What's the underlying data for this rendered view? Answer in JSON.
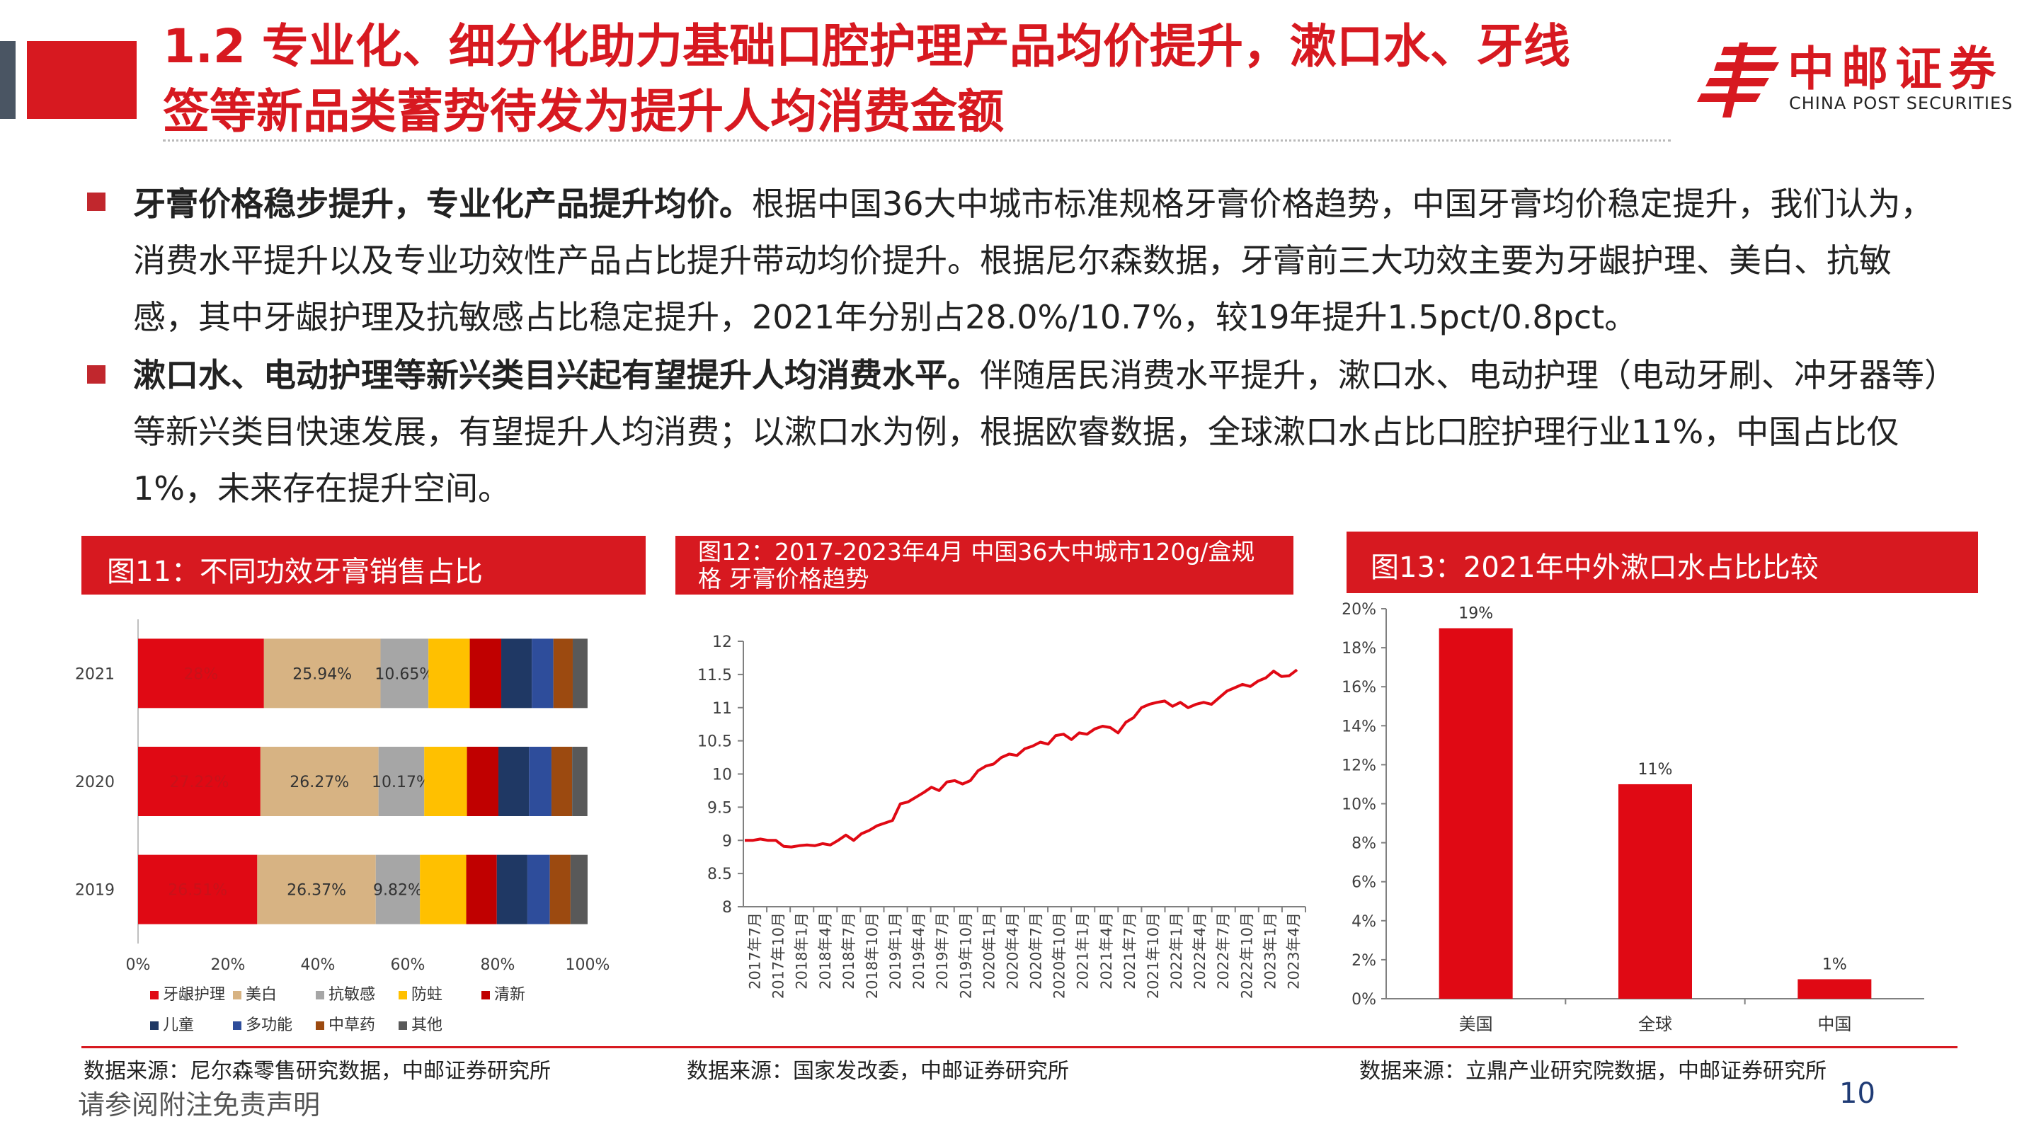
{
  "header": {
    "title_line1": "1.2 专业化、细分化助力基础口腔护理产品均价提升，漱口水、牙线",
    "title_line2": "签等新品类蓄势待发为提升人均消费金额",
    "logo_cn": "中邮证券",
    "logo_en": "CHINA POST SECURITIES",
    "brand_color": "#d71920"
  },
  "bullets": [
    {
      "bold": "牙膏价格稳步提升，专业化产品提升均价。",
      "text": "根据中国36大中城市标准规格牙膏价格趋势，中国牙膏均价稳定提升，我们认为，消费水平提升以及专业功效性产品占比提升带动均价提升。根据尼尔森数据，牙膏前三大功效主要为牙龈护理、美白、抗敏感，其中牙龈护理及抗敏感占比稳定提升，2021年分别占28.0%/10.7%，较19年提升1.5pct/0.8pct。"
    },
    {
      "bold": "漱口水、电动护理等新兴类目兴起有望提升人均消费水平。",
      "text": "伴随居民消费水平提升，漱口水、电动护理（电动牙刷、冲牙器等）等新兴类目快速发展，有望提升人均消费；以漱口水为例，根据欧睿数据，全球漱口水占比口腔护理行业11%，中国占比仅1%，未来存在提升空间。"
    }
  ],
  "figures": {
    "fig11": {
      "title": "图11：不同功效牙膏销售占比",
      "source": "数据来源：尼尔森零售研究数据，中邮证券研究所"
    },
    "fig12": {
      "title_line1": "图12：2017-2023年4月 中国36大中城市120g/盒规",
      "title_line2": "格   牙膏价格趋势",
      "source": "数据来源：国家发改委，中邮证券研究所"
    },
    "fig13": {
      "title": "图13：2021年中外漱口水占比比较",
      "source": "数据来源：立鼎产业研究院数据，中邮证券研究所"
    }
  },
  "footer": {
    "disclaimer": "请参阅附注免责声明",
    "page_number": "10"
  },
  "chart_data": [
    {
      "type": "bar",
      "orientation": "horizontal",
      "stacked": true,
      "categories": [
        "2021",
        "2020",
        "2019"
      ],
      "series": [
        {
          "name": "牙龈护理",
          "color": "#e00914",
          "values": [
            28.0,
            27.22,
            26.51
          ],
          "labels": [
            "28%",
            "27.22%",
            "26.51%"
          ]
        },
        {
          "name": "美白",
          "color": "#d7b383",
          "values": [
            25.94,
            26.27,
            26.37
          ],
          "labels": [
            "25.94%",
            "26.27%",
            "26.37%"
          ]
        },
        {
          "name": "抗敏感",
          "color": "#a6a6a6",
          "values": [
            10.65,
            10.17,
            9.82
          ],
          "labels": [
            "10.65%",
            "10.17%",
            "9.82%"
          ]
        },
        {
          "name": "防蛀",
          "color": "#ffc000",
          "values": [
            9.2,
            9.5,
            10.3
          ]
        },
        {
          "name": "清新",
          "color": "#c00000",
          "values": [
            7.0,
            7.0,
            6.8
          ]
        },
        {
          "name": "儿童",
          "color": "#1f3864",
          "values": [
            6.8,
            6.8,
            6.8
          ]
        },
        {
          "name": "多功能",
          "color": "#2e4d9b",
          "values": [
            4.8,
            5.0,
            5.0
          ]
        },
        {
          "name": "中草药",
          "color": "#9c4a10",
          "values": [
            4.3,
            4.6,
            4.6
          ]
        },
        {
          "name": "其他",
          "color": "#595959",
          "values": [
            3.3,
            3.4,
            3.8
          ]
        }
      ],
      "xticks": [
        "0%",
        "20%",
        "40%",
        "60%",
        "80%",
        "100%"
      ],
      "xlim": [
        0,
        100
      ]
    },
    {
      "type": "line",
      "ylim": [
        8,
        12
      ],
      "yticks": [
        "8",
        "8.5",
        "9",
        "9.5",
        "10",
        "10.5",
        "11",
        "11.5",
        "12"
      ],
      "xticks": [
        "2017年7月",
        "2017年10月",
        "2018年1月",
        "2018年4月",
        "2018年7月",
        "2018年10月",
        "2019年1月",
        "2019年4月",
        "2019年7月",
        "2019年10月",
        "2020年1月",
        "2020年4月",
        "2020年7月",
        "2020年10月",
        "2021年1月",
        "2021年4月",
        "2021年7月",
        "2021年10月",
        "2022年1月",
        "2022年4月",
        "2022年7月",
        "2022年10月",
        "2023年1月",
        "2023年4月"
      ],
      "series": [
        {
          "name": "",
          "color": "#e00914",
          "values": [
            9.0,
            9.0,
            9.02,
            9.0,
            9.0,
            8.91,
            8.9,
            8.92,
            8.93,
            8.92,
            8.95,
            8.93,
            9.0,
            9.08,
            9.0,
            9.1,
            9.15,
            9.22,
            9.26,
            9.3,
            9.55,
            9.58,
            9.65,
            9.72,
            9.8,
            9.75,
            9.88,
            9.9,
            9.85,
            9.9,
            10.05,
            10.12,
            10.15,
            10.25,
            10.3,
            10.28,
            10.38,
            10.42,
            10.48,
            10.45,
            10.58,
            10.6,
            10.52,
            10.62,
            10.6,
            10.68,
            10.72,
            10.7,
            10.62,
            10.78,
            10.85,
            11.0,
            11.05,
            11.08,
            11.1,
            11.02,
            11.08,
            11.0,
            11.05,
            11.08,
            11.05,
            11.15,
            11.25,
            11.3,
            11.35,
            11.32,
            11.4,
            11.45,
            11.55,
            11.47,
            11.48,
            11.57
          ]
        }
      ]
    },
    {
      "type": "bar",
      "categories": [
        "美国",
        "全球",
        "中国"
      ],
      "values": [
        19,
        11,
        1
      ],
      "labels": [
        "19%",
        "11%",
        "1%"
      ],
      "color": "#e00914",
      "yticks": [
        "0%",
        "2%",
        "4%",
        "6%",
        "8%",
        "10%",
        "12%",
        "14%",
        "16%",
        "18%",
        "20%"
      ],
      "ylim": [
        0,
        20
      ]
    }
  ]
}
